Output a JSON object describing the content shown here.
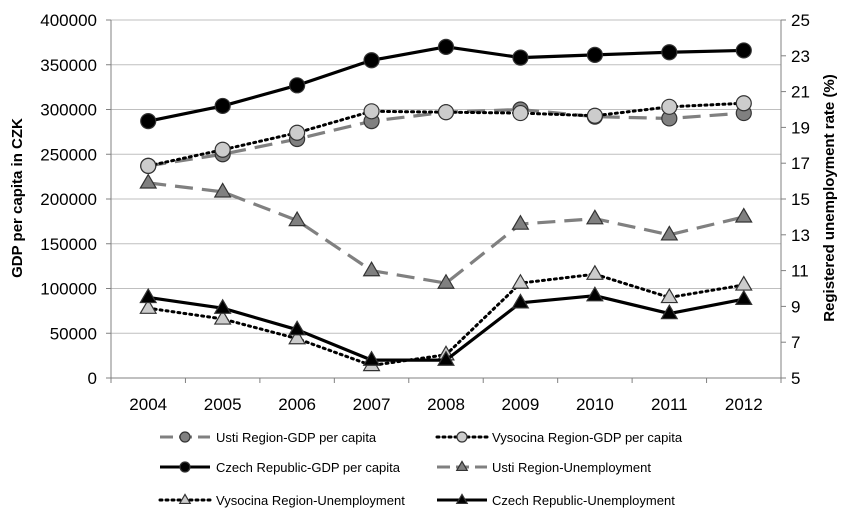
{
  "chart_data": {
    "type": "line",
    "title": "",
    "categories": [
      "2004",
      "2005",
      "2006",
      "2007",
      "2008",
      "2009",
      "2010",
      "2011",
      "2012"
    ],
    "ylabel_left": "GDP per capita in CZK",
    "ylabel_right": "Registered unemployment rate (%)",
    "ylim_left": [
      0,
      400000
    ],
    "yticks_left": [
      "0",
      "50000",
      "100000",
      "150000",
      "200000",
      "250000",
      "300000",
      "350000",
      "400000"
    ],
    "ylim_right": [
      5,
      25
    ],
    "yticks_right": [
      "5",
      "7",
      "9",
      "11",
      "13",
      "15",
      "17",
      "19",
      "21",
      "23",
      "25"
    ],
    "grid": "horizontal",
    "legend_position": "bottom",
    "series": [
      {
        "name": "Usti Region-GDP per capita",
        "axis": "left",
        "line": "dashed",
        "color": "#808080",
        "marker": "circle",
        "marker_fill": "#808080",
        "values": [
          237000,
          250000,
          267000,
          287000,
          297000,
          300000,
          292000,
          290000,
          296000
        ]
      },
      {
        "name": "Vysocina Region-GDP per capita",
        "axis": "left",
        "line": "dotted",
        "color": "#000000",
        "marker": "circle",
        "marker_fill": "#cccccc",
        "values": [
          237000,
          255000,
          274000,
          298000,
          297000,
          296000,
          293000,
          303000,
          307000
        ]
      },
      {
        "name": "Czech Republic-GDP per capita",
        "axis": "left",
        "line": "solid",
        "color": "#000000",
        "marker": "circle",
        "marker_fill": "#000000",
        "values": [
          287000,
          304000,
          327000,
          355000,
          370000,
          358000,
          361000,
          364000,
          366000
        ]
      },
      {
        "name": "Usti Region-Unemployment",
        "axis": "right",
        "line": "dashed",
        "color": "#808080",
        "marker": "triangle",
        "marker_fill": "#808080",
        "values": [
          15.9,
          15.4,
          13.8,
          11.0,
          10.3,
          13.6,
          13.9,
          13.0,
          14.0
        ]
      },
      {
        "name": "Vysocina Region-Unemployment",
        "axis": "right",
        "line": "dotted",
        "color": "#000000",
        "marker": "triangle",
        "marker_fill": "#cccccc",
        "values": [
          8.9,
          8.3,
          7.2,
          5.7,
          6.3,
          10.3,
          10.8,
          9.5,
          10.2
        ]
      },
      {
        "name": "Czech Republic-Unemployment",
        "axis": "right",
        "line": "solid",
        "color": "#000000",
        "marker": "triangle",
        "marker_fill": "#000000",
        "values": [
          9.5,
          8.9,
          7.7,
          6.0,
          6.0,
          9.2,
          9.6,
          8.6,
          9.4
        ]
      }
    ]
  }
}
